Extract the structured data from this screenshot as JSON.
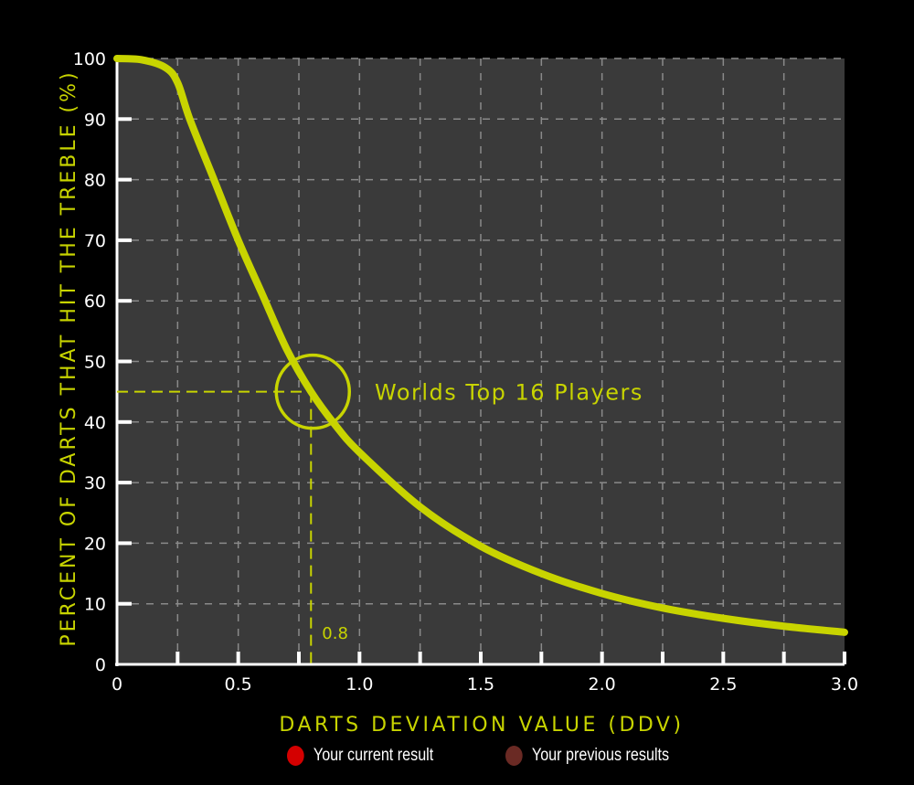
{
  "chart_data": {
    "type": "line",
    "xlabel": "DARTS DEVIATION VALUE (DDV)",
    "ylabel": "PERCENT OF DARTS THAT HIT THE TREBLE (%)",
    "xlim": [
      0,
      3.0
    ],
    "ylim": [
      0,
      100
    ],
    "xticks": [
      "0",
      "0.5",
      "1.0",
      "1.5",
      "2.0",
      "2.5",
      "3.0"
    ],
    "yticks": [
      "0",
      "10",
      "20",
      "30",
      "40",
      "50",
      "60",
      "70",
      "80",
      "90",
      "100"
    ],
    "grid": true,
    "series": [
      {
        "x": [
          0,
          0.1,
          0.2,
          0.25,
          0.3,
          0.4,
          0.5,
          0.6,
          0.7,
          0.8,
          0.9,
          1.0,
          1.25,
          1.5,
          1.75,
          2.0,
          2.25,
          2.5,
          2.75,
          3.0
        ],
        "y": [
          100,
          99.8,
          98.5,
          96,
          90,
          80,
          70,
          61,
          52,
          45,
          39.5,
          35,
          26,
          19.5,
          15,
          11.7,
          9.3,
          7.6,
          6.3,
          5.3
        ],
        "color": "#c8d400"
      }
    ],
    "annotation": {
      "x": 0.8,
      "y": 45,
      "x_label": "0.8",
      "text": "Worlds Top 16 Players"
    }
  },
  "colors": {
    "accent": "#c8d400",
    "plot_bg": "#3a3a3a",
    "current": "#d40000",
    "previous": "#6a2a24"
  },
  "legend": [
    {
      "label": "Your current result",
      "color": "#d40000"
    },
    {
      "label": "Your previous results",
      "color": "#6a2a24"
    }
  ]
}
